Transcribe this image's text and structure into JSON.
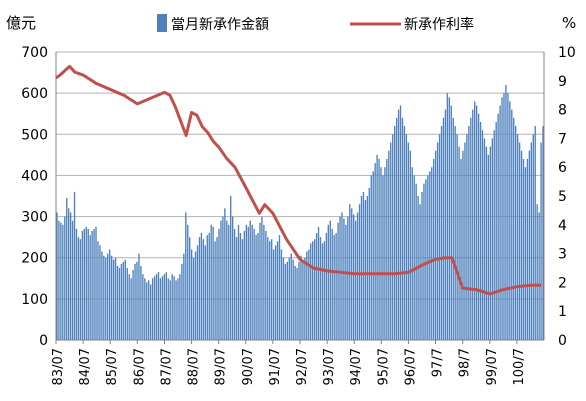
{
  "chart_data": {
    "type": "bar+line",
    "left_axis_unit": "億元",
    "right_axis_unit": "%",
    "left_ylim": [
      0,
      700
    ],
    "right_ylim": [
      0,
      10
    ],
    "left_ticks": [
      "0",
      "100",
      "200",
      "300",
      "400",
      "500",
      "600",
      "700"
    ],
    "right_ticks": [
      "0",
      "1",
      "2",
      "3",
      "4",
      "5",
      "6",
      "7",
      "8",
      "9",
      "10"
    ],
    "x_tick_labels": [
      "83/07",
      "84/07",
      "85/07",
      "86/07",
      "87/07",
      "88/07",
      "89/07",
      "90/07",
      "91/07",
      "92/07",
      "93/07",
      "94/07",
      "95/07",
      "96/07",
      "97/7",
      "98/7",
      "99/07",
      "100/7"
    ],
    "grid": "horizontal, left axis",
    "legend_position": "top",
    "series": [
      {
        "name": "當月新承作金額",
        "type": "bar",
        "axis": "left",
        "color": "#4f81bd",
        "values": [
          310,
          290,
          285,
          280,
          300,
          345,
          320,
          310,
          290,
          360,
          270,
          250,
          245,
          265,
          270,
          275,
          270,
          255,
          265,
          270,
          275,
          240,
          230,
          215,
          205,
          200,
          210,
          220,
          205,
          195,
          200,
          180,
          175,
          185,
          190,
          195,
          175,
          160,
          150,
          170,
          185,
          190,
          210,
          180,
          160,
          150,
          140,
          145,
          135,
          150,
          155,
          160,
          165,
          150,
          155,
          160,
          165,
          150,
          145,
          160,
          155,
          145,
          150,
          160,
          185,
          210,
          310,
          280,
          250,
          220,
          200,
          215,
          230,
          250,
          260,
          245,
          230,
          255,
          260,
          280,
          275,
          240,
          250,
          270,
          290,
          300,
          320,
          290,
          280,
          350,
          300,
          270,
          250,
          280,
          260,
          245,
          265,
          280,
          275,
          290,
          280,
          270,
          255,
          260,
          285,
          300,
          280,
          265,
          250,
          240,
          245,
          220,
          230,
          240,
          255,
          220,
          200,
          185,
          190,
          200,
          210,
          195,
          180,
          175,
          190,
          205,
          190,
          200,
          215,
          220,
          235,
          240,
          245,
          260,
          275,
          250,
          235,
          240,
          260,
          280,
          290,
          270,
          255,
          260,
          285,
          300,
          310,
          295,
          280,
          300,
          330,
          320,
          305,
          290,
          310,
          330,
          350,
          360,
          340,
          350,
          370,
          400,
          410,
          430,
          450,
          440,
          420,
          400,
          420,
          440,
          460,
          480,
          500,
          520,
          540,
          560,
          570,
          540,
          520,
          500,
          480,
          460,
          420,
          400,
          380,
          350,
          330,
          360,
          380,
          390,
          400,
          410,
          420,
          440,
          460,
          480,
          500,
          520,
          540,
          560,
          600,
          590,
          570,
          540,
          520,
          500,
          470,
          440,
          460,
          480,
          500,
          520,
          540,
          560,
          580,
          570,
          550,
          530,
          510,
          490,
          470,
          450,
          470,
          490,
          510,
          530,
          550,
          570,
          590,
          600,
          620,
          600,
          580,
          560,
          540,
          520,
          500,
          480,
          460,
          440,
          420,
          440,
          460,
          480,
          500,
          520,
          330,
          310,
          480,
          520
        ]
      },
      {
        "name": "新承作利率",
        "type": "line",
        "axis": "right",
        "color": "#c0504d",
        "x": [
          0,
          0.15,
          0.5,
          0.7,
          1.0,
          1.5,
          2.0,
          2.5,
          3.0,
          3.5,
          4.0,
          4.2,
          4.4,
          4.8,
          5.0,
          5.2,
          5.4,
          5.6,
          5.8,
          6.0,
          6.3,
          6.6,
          7.0,
          7.5,
          7.7,
          8.0,
          8.5,
          9.0,
          9.5,
          10.0,
          10.5,
          11.0,
          11.5,
          12.0,
          12.5,
          13.0,
          13.5,
          14.0,
          14.3,
          14.6,
          15.0,
          15.5,
          16.0,
          16.5,
          17.0,
          17.5,
          17.9
        ],
        "values": [
          9.1,
          9.2,
          9.5,
          9.3,
          9.2,
          8.9,
          8.7,
          8.5,
          8.2,
          8.4,
          8.6,
          8.5,
          8.1,
          7.1,
          7.9,
          7.8,
          7.4,
          7.2,
          6.9,
          6.7,
          6.3,
          6.0,
          5.3,
          4.4,
          4.7,
          4.4,
          3.5,
          2.8,
          2.5,
          2.4,
          2.35,
          2.3,
          2.3,
          2.3,
          2.3,
          2.35,
          2.6,
          2.8,
          2.85,
          2.85,
          1.8,
          1.75,
          1.6,
          1.75,
          1.85,
          1.9,
          1.9
        ]
      }
    ]
  }
}
